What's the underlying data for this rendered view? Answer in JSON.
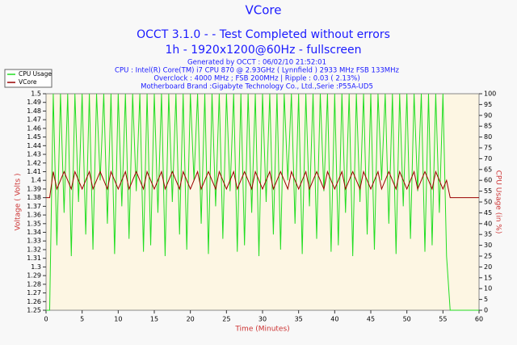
{
  "chart_data": {
    "type": "line",
    "title": "VCore",
    "subtitle": [
      "OCCT 3.1.0 -  - Test Completed without errors",
      "1h - 1920x1200@60Hz - fullscreen"
    ],
    "info": [
      "Generated by OCCT : 06/02/10 21:52:01",
      "CPU : Intel(R) Core(TM) i7 CPU 870 @ 2.93GHz ( Lynnfield ) 2933 MHz FSB 133MHz",
      "Overclock : 4000 MHz ; FSB 200MHz | Ripple : 0.03 ( 2.13%)",
      "Motherboard Brand :Gigabyte Technology Co., Ltd.,Serie :P55A-UD5"
    ],
    "xlabel": "Time (Minutes)",
    "ylabel": "Voltage ( Volts )",
    "y2label": "CPU Usage (in %)",
    "xlim": [
      0,
      60
    ],
    "xticks": [
      0,
      5,
      10,
      15,
      20,
      25,
      30,
      35,
      40,
      45,
      50,
      55,
      60
    ],
    "ylim": [
      1.25,
      1.5
    ],
    "yticks": [
      1.25,
      1.26,
      1.27,
      1.28,
      1.29,
      1.3,
      1.31,
      1.32,
      1.33,
      1.34,
      1.35,
      1.36,
      1.37,
      1.38,
      1.39,
      1.4,
      1.41,
      1.42,
      1.43,
      1.44,
      1.45,
      1.46,
      1.47,
      1.48,
      1.49,
      1.5
    ],
    "y2lim": [
      0,
      100
    ],
    "y2ticks": [
      0,
      5,
      10,
      15,
      20,
      25,
      30,
      35,
      40,
      45,
      50,
      55,
      60,
      65,
      70,
      75,
      80,
      85,
      90,
      95,
      100
    ],
    "grid": false,
    "legend": "top-left",
    "x": [
      0,
      0.5,
      1,
      1.5,
      2,
      2.5,
      3,
      3.5,
      4,
      4.5,
      5,
      5.5,
      6,
      6.5,
      7,
      7.5,
      8,
      8.5,
      9,
      9.5,
      10,
      10.5,
      11,
      11.5,
      12,
      12.5,
      13,
      13.5,
      14,
      14.5,
      15,
      15.5,
      16,
      16.5,
      17,
      17.5,
      18,
      18.5,
      19,
      19.5,
      20,
      20.5,
      21,
      21.5,
      22,
      22.5,
      23,
      23.5,
      24,
      24.5,
      25,
      25.5,
      26,
      26.5,
      27,
      27.5,
      28,
      28.5,
      29,
      29.5,
      30,
      30.5,
      31,
      31.5,
      32,
      32.5,
      33,
      33.5,
      34,
      34.5,
      35,
      35.5,
      36,
      36.5,
      37,
      37.5,
      38,
      38.5,
      39,
      39.5,
      40,
      40.5,
      41,
      41.5,
      42,
      42.5,
      43,
      43.5,
      44,
      44.5,
      45,
      45.5,
      46,
      46.5,
      47,
      47.5,
      48,
      48.5,
      49,
      49.5,
      50,
      50.5,
      51,
      51.5,
      52,
      52.5,
      53,
      53.5,
      54,
      54.5,
      55,
      55.5,
      56,
      56.5,
      57,
      57.5,
      58,
      58.5,
      59,
      59.5,
      60
    ],
    "series": [
      {
        "name": "CPU Usage",
        "color": "#22dd22",
        "axis": "y2",
        "values": [
          0,
          0,
          100,
          30,
          100,
          45,
          100,
          25,
          100,
          50,
          100,
          35,
          100,
          28,
          100,
          60,
          100,
          40,
          100,
          26,
          100,
          48,
          100,
          33,
          100,
          55,
          100,
          27,
          100,
          30,
          100,
          45,
          100,
          25,
          100,
          50,
          100,
          35,
          100,
          28,
          100,
          60,
          100,
          40,
          100,
          26,
          100,
          48,
          100,
          33,
          100,
          55,
          100,
          27,
          100,
          30,
          100,
          45,
          100,
          25,
          100,
          50,
          100,
          35,
          100,
          28,
          100,
          60,
          100,
          40,
          100,
          26,
          100,
          48,
          100,
          33,
          100,
          55,
          100,
          27,
          100,
          30,
          100,
          45,
          100,
          25,
          100,
          50,
          100,
          35,
          100,
          28,
          100,
          60,
          100,
          40,
          100,
          26,
          100,
          48,
          100,
          33,
          100,
          55,
          100,
          27,
          100,
          30,
          100,
          45,
          100,
          25,
          0,
          0,
          0,
          0,
          0,
          0,
          0,
          0,
          0
        ]
      },
      {
        "name": "VCore",
        "color": "#990000",
        "axis": "y",
        "values": [
          1.38,
          1.38,
          1.41,
          1.39,
          1.4,
          1.41,
          1.4,
          1.39,
          1.41,
          1.4,
          1.39,
          1.4,
          1.41,
          1.39,
          1.4,
          1.41,
          1.4,
          1.39,
          1.41,
          1.4,
          1.39,
          1.4,
          1.41,
          1.39,
          1.4,
          1.41,
          1.4,
          1.39,
          1.41,
          1.4,
          1.39,
          1.4,
          1.41,
          1.39,
          1.4,
          1.41,
          1.4,
          1.39,
          1.41,
          1.4,
          1.39,
          1.4,
          1.41,
          1.39,
          1.4,
          1.41,
          1.4,
          1.39,
          1.41,
          1.4,
          1.39,
          1.4,
          1.41,
          1.39,
          1.4,
          1.41,
          1.4,
          1.39,
          1.41,
          1.4,
          1.39,
          1.4,
          1.41,
          1.39,
          1.4,
          1.41,
          1.4,
          1.39,
          1.41,
          1.4,
          1.39,
          1.4,
          1.41,
          1.39,
          1.4,
          1.41,
          1.4,
          1.39,
          1.41,
          1.4,
          1.39,
          1.4,
          1.41,
          1.39,
          1.4,
          1.41,
          1.4,
          1.39,
          1.41,
          1.4,
          1.39,
          1.4,
          1.41,
          1.39,
          1.4,
          1.41,
          1.4,
          1.39,
          1.41,
          1.4,
          1.39,
          1.4,
          1.41,
          1.39,
          1.4,
          1.41,
          1.4,
          1.39,
          1.41,
          1.4,
          1.39,
          1.4,
          1.38,
          1.38,
          1.38,
          1.38,
          1.38,
          1.38,
          1.38,
          1.38,
          1.38
        ]
      }
    ]
  }
}
